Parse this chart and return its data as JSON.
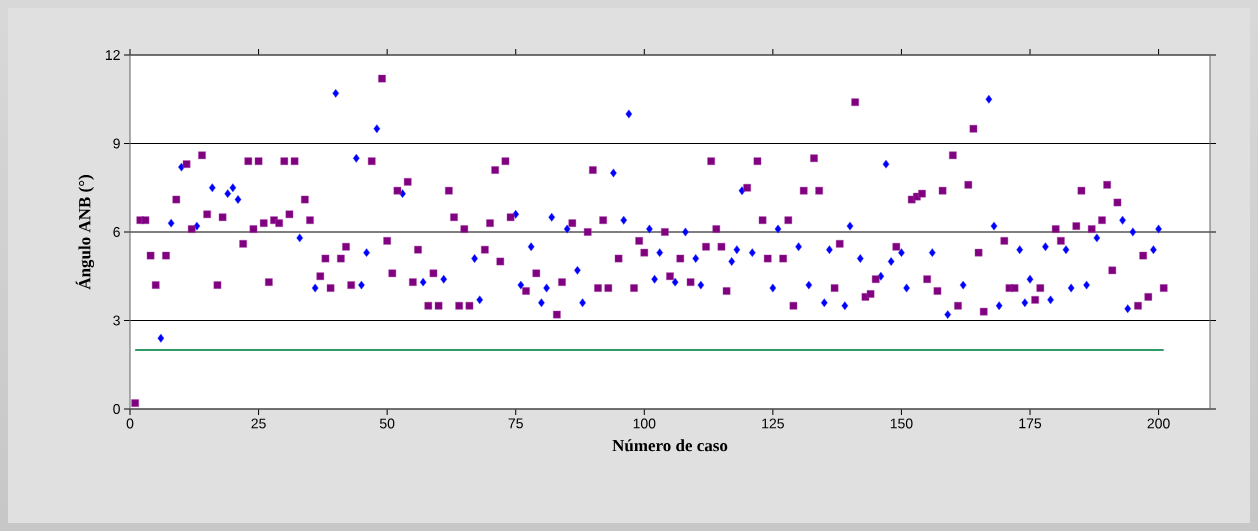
{
  "chart_data": {
    "type": "scatter",
    "xlabel": "Número de caso",
    "ylabel": "Ángulo ANB (°)",
    "xlim": [
      0,
      210
    ],
    "ylim": [
      0,
      12
    ],
    "xticks": [
      0,
      25,
      50,
      75,
      100,
      125,
      150,
      175,
      200
    ],
    "yticks": [
      0,
      3,
      6,
      9,
      12
    ],
    "grid": "y",
    "series": [
      {
        "color": "#0000ff",
        "marker": "diamond",
        "x": [
          6,
          8,
          10,
          13,
          16,
          19,
          20,
          21,
          33,
          36,
          40,
          44,
          45,
          46,
          48,
          53,
          57,
          61,
          67,
          68,
          75,
          76,
          78,
          80,
          81,
          82,
          85,
          87,
          88,
          94,
          96,
          97,
          101,
          102,
          103,
          106,
          108,
          110,
          111,
          117,
          118,
          119,
          121,
          125,
          126,
          130,
          132,
          135,
          136,
          139,
          140,
          142,
          146,
          147,
          148,
          150,
          151,
          156,
          159,
          162,
          167,
          168,
          169,
          173,
          174,
          175,
          178,
          179,
          182,
          183,
          186,
          188,
          193,
          194,
          195,
          199,
          200
        ],
        "values": [
          2.4,
          6.3,
          8.2,
          6.2,
          7.5,
          7.3,
          7.5,
          7.1,
          5.8,
          4.1,
          10.7,
          8.5,
          4.2,
          5.3,
          9.5,
          7.3,
          4.3,
          4.4,
          5.1,
          3.7,
          6.6,
          4.2,
          5.5,
          3.6,
          4.1,
          6.5,
          6.1,
          4.7,
          3.6,
          8.0,
          6.4,
          10.0,
          6.1,
          4.4,
          5.3,
          4.3,
          6.0,
          5.1,
          4.2,
          5.0,
          5.4,
          7.4,
          5.3,
          4.1,
          6.1,
          5.5,
          4.2,
          3.6,
          5.4,
          3.5,
          6.2,
          5.1,
          4.5,
          8.3,
          5.0,
          5.3,
          4.1,
          5.3,
          3.2,
          4.2,
          10.5,
          6.2,
          3.5,
          5.4,
          3.6,
          4.4,
          5.5,
          3.7,
          5.4,
          4.1,
          4.2,
          5.8,
          6.4,
          3.4,
          6.0,
          5.4,
          6.1
        ]
      },
      {
        "color": "#800080",
        "marker": "square",
        "x": [
          1,
          2,
          3,
          4,
          5,
          7,
          9,
          11,
          12,
          14,
          15,
          17,
          18,
          22,
          23,
          24,
          25,
          26,
          27,
          28,
          29,
          30,
          31,
          32,
          34,
          35,
          37,
          38,
          39,
          41,
          42,
          43,
          47,
          49,
          50,
          51,
          52,
          54,
          55,
          56,
          58,
          59,
          60,
          62,
          63,
          64,
          65,
          66,
          69,
          70,
          71,
          72,
          73,
          74,
          77,
          79,
          83,
          84,
          86,
          89,
          90,
          91,
          92,
          93,
          95,
          98,
          99,
          100,
          104,
          105,
          107,
          109,
          112,
          113,
          114,
          115,
          116,
          120,
          122,
          123,
          124,
          127,
          128,
          129,
          131,
          133,
          134,
          137,
          138,
          141,
          143,
          144,
          145,
          149,
          152,
          153,
          154,
          155,
          157,
          158,
          160,
          161,
          163,
          164,
          165,
          166,
          170,
          171,
          172,
          176,
          177,
          180,
          181,
          184,
          185,
          187,
          189,
          190,
          191,
          192,
          196,
          197,
          198,
          201
        ],
        "values": [
          0.2,
          6.4,
          6.4,
          5.2,
          4.2,
          5.2,
          7.1,
          8.3,
          6.1,
          8.6,
          6.6,
          4.2,
          6.5,
          5.6,
          8.4,
          6.1,
          8.4,
          6.3,
          4.3,
          6.4,
          6.3,
          8.4,
          6.6,
          8.4,
          7.1,
          6.4,
          4.5,
          5.1,
          4.1,
          5.1,
          5.5,
          4.2,
          8.4,
          11.2,
          5.7,
          4.6,
          7.4,
          7.7,
          4.3,
          5.4,
          3.5,
          4.6,
          3.5,
          7.4,
          6.5,
          3.5,
          6.1,
          3.5,
          5.4,
          6.3,
          8.1,
          5.0,
          8.4,
          6.5,
          4.0,
          4.6,
          3.2,
          4.3,
          6.3,
          6.0,
          8.1,
          4.1,
          6.4,
          4.1,
          5.1,
          4.1,
          5.7,
          5.3,
          6.0,
          4.5,
          5.1,
          4.3,
          5.5,
          8.4,
          6.1,
          5.5,
          4.0,
          7.5,
          8.4,
          6.4,
          5.1,
          5.1,
          6.4,
          3.5,
          7.4,
          8.5,
          7.4,
          4.1,
          5.6,
          10.4,
          3.8,
          3.9,
          4.4,
          5.5,
          7.1,
          7.2,
          7.3,
          4.4,
          4.0,
          7.4,
          8.6,
          3.5,
          7.6,
          9.5,
          5.3,
          3.3,
          5.7,
          4.1,
          4.1,
          3.7,
          4.1,
          6.1,
          5.7,
          6.2,
          7.4,
          6.1,
          6.4,
          7.6,
          4.7,
          7.0,
          3.5,
          5.2,
          3.8,
          4.1
        ]
      },
      {
        "type": "line",
        "color": "#339966",
        "x": [
          1,
          201
        ],
        "values": [
          2,
          2
        ]
      }
    ]
  }
}
